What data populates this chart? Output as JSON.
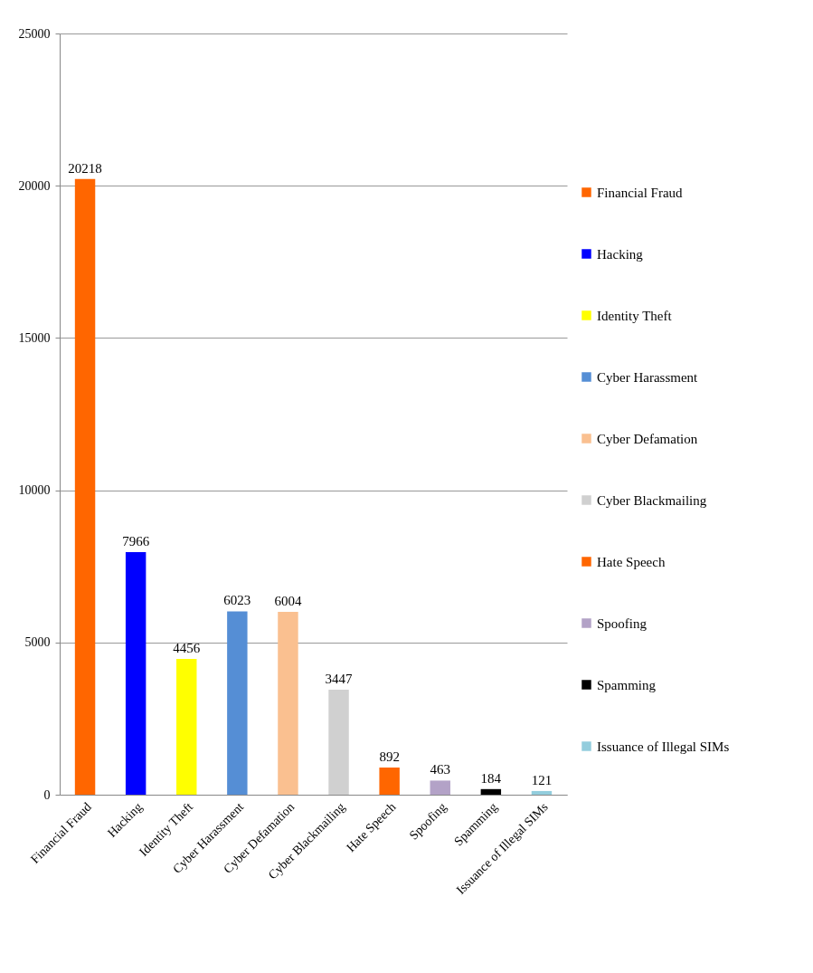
{
  "chart_data": {
    "type": "bar",
    "stacked": true,
    "categories": [
      "Financial Fraud",
      "Hacking",
      "Identity Theft",
      "Cyber Harassment",
      "Cyber Defamation",
      "Cyber Blackmailing",
      "Hate Speech",
      "Spoofing",
      "Spamming",
      "Issuance of Illegal SIMs"
    ],
    "series": [
      {
        "name": "Financial Fraud",
        "color": "#ff6600",
        "values": [
          20218,
          null,
          null,
          null,
          null,
          null,
          null,
          null,
          null,
          null
        ]
      },
      {
        "name": "Hacking",
        "color": "#0000ff",
        "values": [
          null,
          7966,
          null,
          null,
          null,
          null,
          null,
          null,
          null,
          null
        ]
      },
      {
        "name": "Identity Theft",
        "color": "#ffff00",
        "values": [
          null,
          null,
          4456,
          null,
          null,
          null,
          null,
          null,
          null,
          null
        ]
      },
      {
        "name": "Cyber Harassment",
        "color": "#558ed5",
        "values": [
          null,
          null,
          null,
          6023,
          null,
          null,
          null,
          null,
          null,
          null
        ]
      },
      {
        "name": "Cyber Defamation",
        "color": "#fac090",
        "values": [
          null,
          null,
          null,
          null,
          6004,
          null,
          null,
          null,
          null,
          null
        ]
      },
      {
        "name": "Cyber Blackmailing",
        "color": "#d0d0d0",
        "values": [
          null,
          null,
          null,
          null,
          null,
          3447,
          null,
          null,
          null,
          null
        ]
      },
      {
        "name": "Hate Speech",
        "color": "#ff6600",
        "values": [
          null,
          null,
          null,
          null,
          null,
          null,
          892,
          null,
          null,
          null
        ]
      },
      {
        "name": "Spoofing",
        "color": "#b3a2c7",
        "values": [
          null,
          null,
          null,
          null,
          null,
          null,
          null,
          463,
          null,
          null
        ]
      },
      {
        "name": "Spamming",
        "color": "#000000",
        "values": [
          null,
          null,
          null,
          null,
          null,
          null,
          null,
          null,
          184,
          null
        ]
      },
      {
        "name": "Issuance of Illegal SIMs",
        "color": "#93cddd",
        "values": [
          null,
          null,
          null,
          null,
          null,
          null,
          null,
          null,
          null,
          121
        ]
      }
    ],
    "ylim": [
      0,
      25000
    ],
    "yticks": [
      0,
      5000,
      10000,
      15000,
      20000,
      25000
    ],
    "grid": "y",
    "legend": "right",
    "data_labels": true
  }
}
